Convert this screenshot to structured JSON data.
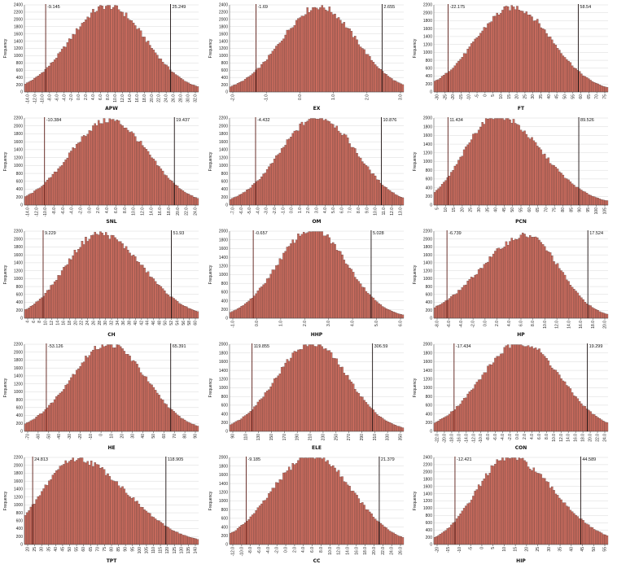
{
  "chart_data": [
    {
      "type": "bar",
      "xlabel": "APW",
      "ylabel": "Frequency",
      "ylim": [
        0,
        2400
      ],
      "yticks": [
        0,
        200,
        400,
        600,
        800,
        1000,
        1200,
        1400,
        1600,
        1800,
        2000,
        2200,
        2400
      ],
      "xticks": [
        "-14.0",
        "-12.0",
        "-10.0",
        "-8.0",
        "-6.0",
        "-4.0",
        "-2.0",
        "0.0",
        "2.0",
        "4.0",
        "6.0",
        "8.0",
        "10.0",
        "12.0",
        "14.0",
        "16.0",
        "18.0",
        "20.0",
        "22.0",
        "24.0",
        "26.0",
        "28.0",
        "30.0",
        "32.0"
      ],
      "bounds": {
        "lower": {
          "label": "-9.145",
          "value": -9.145
        },
        "upper": {
          "label": "25.249",
          "value": 25.249
        }
      },
      "mean": 8.0,
      "sd": 10.5,
      "peak": 2370,
      "xmin": -15,
      "xmax": 33,
      "tailsplit": 0.0
    },
    {
      "type": "bar",
      "xlabel": "EX",
      "ylabel": "Frequency",
      "ylim": [
        0,
        2400
      ],
      "yticks": [
        0,
        200,
        400,
        600,
        800,
        1000,
        1200,
        1400,
        1600,
        1800,
        2000,
        2200,
        2400
      ],
      "xticks": [
        "-2.0",
        "-1.0",
        "0.0",
        "1.0",
        "2.0",
        "3.0"
      ],
      "bounds": {
        "lower": {
          "label": "-1.69",
          "value": -1.69
        },
        "upper": {
          "label": "2.655",
          "value": 2.655
        }
      },
      "mean": 0.48,
      "sd": 1.3,
      "peak": 2350,
      "xmin": -2.6,
      "xmax": 3.4,
      "tailsplit": 0.0
    },
    {
      "type": "bar",
      "xlabel": "FT",
      "ylabel": "Frequency",
      "ylim": [
        0,
        2200
      ],
      "yticks": [
        0,
        200,
        400,
        600,
        800,
        1000,
        1200,
        1400,
        1600,
        1800,
        2000,
        2200
      ],
      "xticks": [
        "-30",
        "-25",
        "-20",
        "-15",
        "-10",
        "-5",
        "0",
        "5",
        "10",
        "15",
        "20",
        "25",
        "30",
        "35",
        "40",
        "45",
        "50",
        "55",
        "60",
        "65",
        "70",
        "75"
      ],
      "bounds": {
        "lower": {
          "label": "-22.175",
          "value": -22.175
        },
        "upper": {
          "label": "58.54",
          "value": 58.54
        }
      },
      "mean": 18.5,
      "sd": 24.0,
      "peak": 2140,
      "xmin": -31,
      "xmax": 77,
      "tailsplit": 0.0
    },
    {
      "type": "bar",
      "xlabel": "SNL",
      "ylabel": "Frequency",
      "ylim": [
        0,
        2200
      ],
      "yticks": [
        0,
        200,
        400,
        600,
        800,
        1000,
        1200,
        1400,
        1600,
        1800,
        2000,
        2200
      ],
      "xticks": [
        "-14.0",
        "-12.0",
        "-10.0",
        "-8.0",
        "-6.0",
        "-4.0",
        "-2.0",
        "0.0",
        "2.0",
        "4.0",
        "6.0",
        "8.0",
        "10.0",
        "12.0",
        "14.0",
        "16.0",
        "18.0",
        "20.0",
        "22.0",
        "24.0"
      ],
      "bounds": {
        "lower": {
          "label": "-10.384",
          "value": -10.384
        },
        "upper": {
          "label": "19.437",
          "value": 19.437
        }
      },
      "mean": 4.5,
      "sd": 9.0,
      "peak": 2150,
      "xmin": -15,
      "xmax": 25,
      "tailsplit": 0.0
    },
    {
      "type": "bar",
      "xlabel": "OM",
      "ylabel": "Frequency",
      "ylim": [
        0,
        2200
      ],
      "yticks": [
        0,
        200,
        400,
        600,
        800,
        1000,
        1200,
        1400,
        1600,
        1800,
        2000,
        2200
      ],
      "xticks": [
        "-7.0",
        "-6.0",
        "-5.0",
        "-4.0",
        "-3.0",
        "-2.0",
        "-1.0",
        "0.0",
        "1.0",
        "2.0",
        "3.0",
        "4.0",
        "5.0",
        "6.0",
        "7.0",
        "8.0",
        "9.0",
        "10.0",
        "11.0",
        "12.0",
        "13.0"
      ],
      "bounds": {
        "lower": {
          "label": "-4.432",
          "value": -4.432
        },
        "upper": {
          "label": "10.876",
          "value": 10.876
        }
      },
      "mean": 3.2,
      "sd": 4.6,
      "peak": 2230,
      "xmin": -7.6,
      "xmax": 13.6,
      "tailsplit": 0.0
    },
    {
      "type": "bar",
      "xlabel": "PCN",
      "ylabel": "Frequency",
      "ylim": [
        0,
        2000
      ],
      "yticks": [
        0,
        200,
        400,
        600,
        800,
        1000,
        1200,
        1400,
        1600,
        1800,
        2000
      ],
      "xticks": [
        "5",
        "10",
        "15",
        "20",
        "25",
        "30",
        "35",
        "40",
        "45",
        "50",
        "55",
        "60",
        "65",
        "70",
        "75",
        "80",
        "85",
        "90",
        "95",
        "100",
        "105"
      ],
      "bounds": {
        "lower": {
          "label": "11.434",
          "value": 11.434
        },
        "upper": {
          "label": "89.526",
          "value": 89.526
        }
      },
      "mean": 40.0,
      "sd": 20.0,
      "peak": 2060,
      "xmin": 3,
      "xmax": 107,
      "tailsplit": 0.35
    },
    {
      "type": "bar",
      "xlabel": "CH",
      "ylabel": "Frequency",
      "ylim": [
        0,
        2200
      ],
      "yticks": [
        0,
        200,
        400,
        600,
        800,
        1000,
        1200,
        1400,
        1600,
        1800,
        2000,
        2200
      ],
      "xticks": [
        "4",
        "6",
        "8",
        "10",
        "12",
        "14",
        "16",
        "18",
        "20",
        "22",
        "24",
        "26",
        "28",
        "30",
        "32",
        "34",
        "36",
        "38",
        "40",
        "42",
        "44",
        "46",
        "48",
        "50",
        "52",
        "54",
        "56",
        "58",
        "60"
      ],
      "bounds": {
        "lower": {
          "label": "9.229",
          "value": 9.229
        },
        "upper": {
          "label": "51.93",
          "value": 51.93
        }
      },
      "mean": 28.0,
      "sd": 12.0,
      "peak": 2140,
      "xmin": 3,
      "xmax": 61,
      "tailsplit": 0.2
    },
    {
      "type": "bar",
      "xlabel": "HHP",
      "ylabel": "Frequency",
      "ylim": [
        0,
        2000
      ],
      "yticks": [
        0,
        200,
        400,
        600,
        800,
        1000,
        1200,
        1400,
        1600,
        1800,
        2000
      ],
      "xticks": [
        "-1.0",
        "0.0",
        "1.0",
        "2.0",
        "3.0",
        "4.0",
        "5.0",
        "6.0"
      ],
      "bounds": {
        "lower": {
          "label": "-0.657",
          "value": -0.657
        },
        "upper": {
          "label": "5.028",
          "value": 5.028
        }
      },
      "mean": 2.2,
      "sd": 1.7,
      "peak": 2040,
      "xmin": -1.8,
      "xmax": 6.6,
      "tailsplit": 0.0
    },
    {
      "type": "bar",
      "xlabel": "HP",
      "ylabel": "Frequency",
      "ylim": [
        0,
        2200
      ],
      "yticks": [
        0,
        200,
        400,
        600,
        800,
        1000,
        1200,
        1400,
        1600,
        1800,
        2000,
        2200
      ],
      "xticks": [
        "-8.0",
        "-6.0",
        "-4.0",
        "-2.0",
        "0.0",
        "2.0",
        "4.0",
        "6.0",
        "8.0",
        "10.0",
        "12.0",
        "14.0",
        "16.0",
        "18.0",
        "20.0"
      ],
      "bounds": {
        "lower": {
          "label": "-6.739",
          "value": -6.739
        },
        "upper": {
          "label": "17.524",
          "value": 17.524
        }
      },
      "mean": 7.0,
      "sd": 7.5,
      "peak": 2090,
      "xmin": -9,
      "xmax": 21,
      "tailsplit": -0.25
    },
    {
      "type": "bar",
      "xlabel": "HE",
      "ylabel": "Frequency",
      "ylim": [
        0,
        2200
      ],
      "yticks": [
        0,
        200,
        400,
        600,
        800,
        1000,
        1200,
        1400,
        1600,
        1800,
        2000,
        2200
      ],
      "xticks": [
        "-70",
        "-60",
        "-50",
        "-40",
        "-30",
        "-20",
        "-10",
        "0",
        "10",
        "20",
        "30",
        "40",
        "50",
        "60",
        "70",
        "80",
        "90"
      ],
      "bounds": {
        "lower": {
          "label": "-53.126",
          "value": -53.126
        },
        "upper": {
          "label": "65.391",
          "value": 65.391
        }
      },
      "mean": 6.0,
      "sd": 36.0,
      "peak": 2210,
      "xmin": -74,
      "xmax": 92,
      "tailsplit": 0.0
    },
    {
      "type": "bar",
      "xlabel": "ELE",
      "ylabel": "Frequency",
      "ylim": [
        0,
        2000
      ],
      "yticks": [
        0,
        200,
        400,
        600,
        800,
        1000,
        1200,
        1400,
        1600,
        1800,
        2000
      ],
      "xticks": [
        "90",
        "110",
        "130",
        "150",
        "170",
        "190",
        "210",
        "230",
        "250",
        "270",
        "290",
        "310",
        "330",
        "350"
      ],
      "bounds": {
        "lower": {
          "label": "119.855",
          "value": 119.855
        },
        "upper": {
          "label": "306.59",
          "value": 306.59
        }
      },
      "mean": 213.0,
      "sd": 56.0,
      "peak": 2030,
      "xmin": 85,
      "xmax": 355,
      "tailsplit": 0.0
    },
    {
      "type": "bar",
      "xlabel": "CON",
      "ylabel": "Frequency",
      "ylim": [
        0,
        2000
      ],
      "yticks": [
        0,
        200,
        400,
        600,
        800,
        1000,
        1200,
        1400,
        1600,
        1800,
        2000
      ],
      "xticks": [
        "-22.0",
        "-20.0",
        "-18.0",
        "-16.0",
        "-14.0",
        "-12.0",
        "-10.0",
        "-8.0",
        "-6.0",
        "-4.0",
        "-2.0",
        "0.0",
        "2.0",
        "4.0",
        "6.0",
        "8.0",
        "10.0",
        "12.0",
        "14.0",
        "16.0",
        "18.0",
        "20.0",
        "22.0",
        "24.0"
      ],
      "bounds": {
        "lower": {
          "label": "-17.434",
          "value": -17.434
        },
        "upper": {
          "label": "19.299",
          "value": 19.299
        }
      },
      "mean": 1.0,
      "sd": 11.0,
      "peak": 2040,
      "xmin": -23,
      "xmax": 25,
      "tailsplit": 0.0
    },
    {
      "type": "bar",
      "xlabel": "TPT",
      "ylabel": "Frequency",
      "ylim": [
        0,
        2200
      ],
      "yticks": [
        0,
        200,
        400,
        600,
        800,
        1000,
        1200,
        1400,
        1600,
        1800,
        2000,
        2200
      ],
      "xticks": [
        "20",
        "25",
        "30",
        "35",
        "40",
        "45",
        "50",
        "55",
        "60",
        "65",
        "70",
        "75",
        "80",
        "85",
        "90",
        "95",
        "100",
        "105",
        "110",
        "115",
        "120",
        "125",
        "130",
        "135",
        "140"
      ],
      "bounds": {
        "lower": {
          "label": "24.813",
          "value": 24.813
        },
        "upper": {
          "label": "118.905",
          "value": 118.905
        }
      },
      "mean": 55.0,
      "sd": 26.0,
      "peak": 2170,
      "xmin": 19,
      "xmax": 142,
      "tailsplit": 0.4
    },
    {
      "type": "bar",
      "xlabel": "CC",
      "ylabel": "Frequency",
      "ylim": [
        0,
        2000
      ],
      "yticks": [
        0,
        200,
        400,
        600,
        800,
        1000,
        1200,
        1400,
        1600,
        1800,
        2000
      ],
      "xticks": [
        "-12.0",
        "-10.0",
        "-8.0",
        "-6.0",
        "-4.0",
        "-2.0",
        "0.0",
        "2.0",
        "4.0",
        "6.0",
        "8.0",
        "10.0",
        "12.0",
        "14.0",
        "16.0",
        "18.0",
        "20.0",
        "22.0",
        "24.0",
        "26.0"
      ],
      "bounds": {
        "lower": {
          "label": "-9.185",
          "value": -9.185
        },
        "upper": {
          "label": "21.379",
          "value": 21.379
        }
      },
      "mean": 6.0,
      "sd": 9.2,
      "peak": 2050,
      "xmin": -13,
      "xmax": 27,
      "tailsplit": 0.0
    },
    {
      "type": "bar",
      "xlabel": "HIP",
      "ylabel": "Frequency",
      "ylim": [
        0,
        2400
      ],
      "yticks": [
        0,
        200,
        400,
        600,
        800,
        1000,
        1200,
        1400,
        1600,
        1800,
        2000,
        2200,
        2400
      ],
      "xticks": [
        "-20",
        "-15",
        "-10",
        "-5",
        "0",
        "5",
        "10",
        "15",
        "20",
        "25",
        "30",
        "35",
        "40",
        "45",
        "50",
        "55"
      ],
      "bounds": {
        "lower": {
          "label": "-12.421",
          "value": -12.421
        },
        "upper": {
          "label": "44.589",
          "value": 44.589
        }
      },
      "mean": 12.0,
      "sd": 16.0,
      "peak": 2400,
      "xmin": -22,
      "xmax": 57,
      "tailsplit": 0.3
    }
  ]
}
